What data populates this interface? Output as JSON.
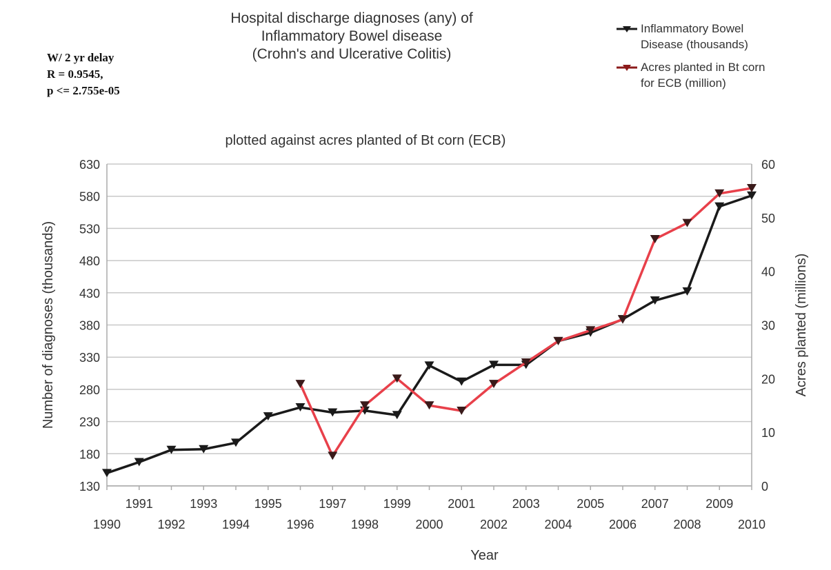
{
  "title_lines": [
    "Hospital discharge diagnoses (any) of",
    "Inflammatory Bowel disease",
    "(Crohn's and Ulcerative Colitis)"
  ],
  "stats_lines": [
    "W/ 2 yr delay",
    "R = 0.9545,",
    "p <= 2.755e-05"
  ],
  "legend": [
    {
      "label_lines": [
        "Inflammatory Bowel",
        "Disease (thousands)"
      ],
      "color": "#1a1a1a"
    },
    {
      "label_lines": [
        "Acres planted in Bt corn",
        "for ECB (million)"
      ],
      "color": "#8b1a1a"
    }
  ],
  "chart_data": {
    "type": "line",
    "subtitle": "plotted against acres planted of Bt corn (ECB)",
    "xlabel": "Year",
    "ylabel_left": "Number of diagnoses (thousands)",
    "ylabel_right": "Acres planted (millions)",
    "ylim_left": [
      130,
      630
    ],
    "ylim_right": [
      0,
      60
    ],
    "yticks_left": [
      130,
      180,
      230,
      280,
      330,
      380,
      430,
      480,
      530,
      580,
      630
    ],
    "yticks_right": [
      0,
      10,
      20,
      30,
      40,
      50,
      60
    ],
    "grid": true,
    "x": [
      1990,
      1991,
      1992,
      1993,
      1994,
      1995,
      1996,
      1997,
      1998,
      1999,
      2000,
      2001,
      2002,
      2003,
      2004,
      2005,
      2006,
      2007,
      2008,
      2009,
      2010
    ],
    "xtick_labels": [
      "1990",
      "1991",
      "1992",
      "1993",
      "1994",
      "1995",
      "1996",
      "1997",
      "1998",
      "1999",
      "2000",
      "2001",
      "2002",
      "2003",
      "2004",
      "2005",
      "2006",
      "2007",
      "2008",
      "2009",
      "2010"
    ],
    "series": [
      {
        "name": "Inflammatory Bowel Disease (thousands)",
        "axis": "left",
        "color": "#1a1a1a",
        "x": [
          1990,
          1991,
          1992,
          1993,
          1994,
          1995,
          1996,
          1997,
          1998,
          1999,
          2000,
          2001,
          2002,
          2003,
          2004,
          2005,
          2006,
          2007,
          2008,
          2009,
          2010
        ],
        "values": [
          150,
          167,
          186,
          187,
          197,
          238,
          252,
          244,
          247,
          240,
          317,
          292,
          318,
          318,
          355,
          368,
          389,
          418,
          432,
          564,
          581
        ]
      },
      {
        "name": "Acres planted in Bt corn for ECB (million)",
        "axis": "right",
        "color": "#e8404a",
        "x": [
          1996,
          1997,
          1998,
          1999,
          2000,
          2001,
          2002,
          2003,
          2004,
          2005,
          2006,
          2007,
          2008,
          2009,
          2010
        ],
        "values": [
          19,
          5.6,
          15,
          20,
          15,
          14,
          19,
          23,
          27,
          29,
          31,
          46,
          49,
          54.5,
          55.5
        ]
      }
    ]
  }
}
